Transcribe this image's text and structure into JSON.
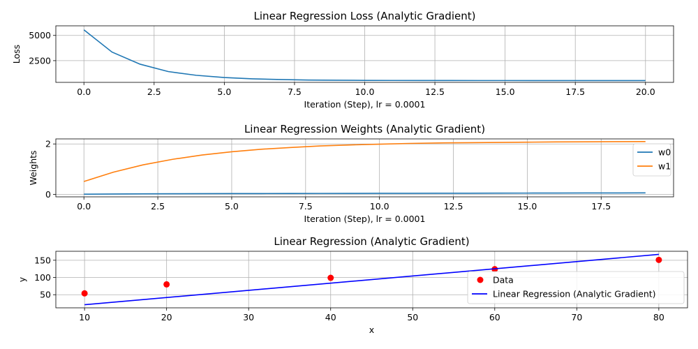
{
  "chart_data": [
    {
      "type": "line",
      "title": "Linear Regression Loss (Analytic Gradient)",
      "xlabel": "Iteration (Step), lr = 0.0001",
      "ylabel": "Loss",
      "xlim": [
        -1,
        21
      ],
      "ylim": [
        350,
        5950
      ],
      "xticks": [
        0.0,
        2.5,
        5.0,
        7.5,
        10.0,
        12.5,
        15.0,
        17.5,
        20.0
      ],
      "xtick_labels": [
        "0.0",
        "2.5",
        "5.0",
        "7.5",
        "10.0",
        "12.5",
        "15.0",
        "17.5",
        "20.0"
      ],
      "yticks": [
        2500,
        5000
      ],
      "ytick_labels": [
        "2500",
        "5000"
      ],
      "grid": true,
      "series": [
        {
          "name": "",
          "color": "#1f77b4",
          "x": [
            0,
            1,
            2,
            3,
            4,
            5,
            6,
            7,
            8,
            9,
            10,
            11,
            12,
            13,
            14,
            15,
            16,
            17,
            18,
            19,
            20
          ],
          "y": [
            5550,
            3350,
            2150,
            1420,
            1050,
            830,
            700,
            630,
            580,
            560,
            545,
            540,
            535,
            533,
            532,
            531,
            530,
            530,
            529,
            529,
            528
          ]
        }
      ]
    },
    {
      "type": "line",
      "title": "Linear Regression Weights (Analytic Gradient)",
      "xlabel": "Iteration (Step), lr = 0.0001",
      "ylabel": "Weights",
      "xlim": [
        -0.95,
        19.95
      ],
      "ylim": [
        -0.1,
        2.2
      ],
      "xticks": [
        0.0,
        2.5,
        5.0,
        7.5,
        10.0,
        12.5,
        15.0,
        17.5
      ],
      "xtick_labels": [
        "0.0",
        "2.5",
        "5.0",
        "7.5",
        "10.0",
        "12.5",
        "15.0",
        "17.5"
      ],
      "yticks": [
        0,
        2
      ],
      "ytick_labels": [
        "0",
        "2"
      ],
      "grid": true,
      "legend": "right",
      "series": [
        {
          "name": "w0",
          "color": "#1f77b4",
          "x": [
            0,
            1,
            2,
            3,
            4,
            5,
            6,
            7,
            8,
            9,
            10,
            11,
            12,
            13,
            14,
            15,
            16,
            17,
            18,
            19
          ],
          "y": [
            0.005,
            0.014,
            0.019,
            0.023,
            0.026,
            0.029,
            0.031,
            0.033,
            0.035,
            0.037,
            0.039,
            0.041,
            0.043,
            0.045,
            0.047,
            0.049,
            0.051,
            0.053,
            0.055,
            0.057
          ]
        },
        {
          "name": "w1",
          "color": "#ff7f0e",
          "x": [
            0,
            1,
            2,
            3,
            4,
            5,
            6,
            7,
            8,
            9,
            10,
            11,
            12,
            13,
            14,
            15,
            16,
            17,
            18,
            19
          ],
          "y": [
            0.51,
            0.88,
            1.17,
            1.39,
            1.56,
            1.69,
            1.79,
            1.86,
            1.92,
            1.96,
            1.99,
            2.02,
            2.04,
            2.05,
            2.06,
            2.07,
            2.08,
            2.085,
            2.09,
            2.095
          ]
        }
      ]
    },
    {
      "type": "scatter",
      "title": "Linear Regression (Analytic Gradient)",
      "xlabel": "x",
      "ylabel": "y",
      "xlim": [
        6.5,
        83.5
      ],
      "ylim": [
        12,
        176
      ],
      "xticks": [
        10,
        20,
        30,
        40,
        50,
        60,
        70,
        80
      ],
      "xtick_labels": [
        "10",
        "20",
        "30",
        "40",
        "50",
        "60",
        "70",
        "80"
      ],
      "yticks": [
        50,
        100,
        150
      ],
      "ytick_labels": [
        "50",
        "100",
        "150"
      ],
      "grid": true,
      "legend": "lower right",
      "series": [
        {
          "name": "Data",
          "kind": "scatter",
          "color": "#ff0000",
          "x": [
            10,
            20,
            40,
            60,
            80
          ],
          "y": [
            54,
            80,
            99,
            124,
            151
          ]
        },
        {
          "name": "Linear Regression (Analytic Gradient)",
          "kind": "line",
          "color": "#0000ff",
          "x": [
            10,
            80
          ],
          "y": [
            21,
            167
          ]
        }
      ]
    }
  ]
}
